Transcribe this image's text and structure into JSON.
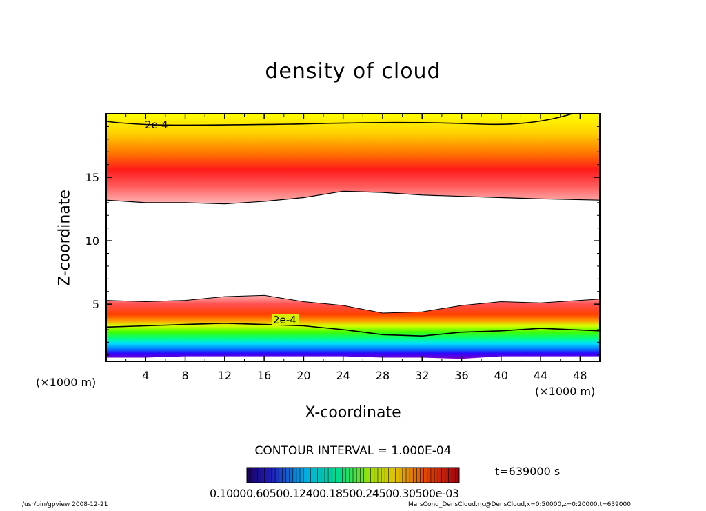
{
  "chart_data": {
    "type": "heatmap",
    "title": "density of cloud",
    "xlabel": "X-coordinate",
    "ylabel": "Z-coordinate",
    "x_unit_label": "(×1000 m)",
    "x_ticks": [
      4,
      8,
      12,
      16,
      20,
      24,
      28,
      32,
      36,
      40,
      44,
      48
    ],
    "y_ticks": [
      5,
      10,
      15
    ],
    "xlim": [
      0,
      50
    ],
    "ylim": [
      0.5,
      20
    ],
    "contour_interval": "CONTOUR INTERVAL = 1.000E-04",
    "contour_label": "2e-4",
    "time_label": "t=639000 s",
    "colorbar_label": "0.10000.60500.12400.18500.24500.30500e-03",
    "colorbar_min": 0.0001,
    "colorbar_max": 0.0003,
    "upper_layer": {
      "x": [
        0,
        4,
        8,
        12,
        16,
        20,
        24,
        28,
        32,
        36,
        40,
        44,
        50
      ],
      "bottom": [
        13.2,
        13.0,
        13.0,
        12.9,
        13.1,
        13.4,
        13.9,
        13.8,
        13.6,
        13.5,
        13.4,
        13.3,
        13.2
      ],
      "peak": 15.5
    },
    "lower_layer": {
      "x": [
        0,
        4,
        8,
        12,
        16,
        20,
        24,
        28,
        32,
        36,
        40,
        44,
        50
      ],
      "top": [
        5.3,
        5.2,
        5.3,
        5.6,
        5.7,
        5.2,
        4.9,
        4.3,
        4.4,
        4.9,
        5.2,
        5.1,
        5.4
      ],
      "contour_2e4": [
        3.2,
        3.3,
        3.4,
        3.5,
        3.4,
        3.3,
        3.0,
        2.6,
        2.5,
        2.8,
        2.9,
        3.1,
        2.9
      ],
      "bottom": [
        0.8,
        0.8,
        0.9,
        0.9,
        0.9,
        0.9,
        0.9,
        0.8,
        0.8,
        0.7,
        0.9,
        0.9,
        0.9
      ]
    }
  },
  "footer": {
    "left": "/usr/bin/gpview   2008-12-21",
    "right": "MarsCond_DensCloud.nc@DensCloud,x=0:50000,z=0:20000,t=639000"
  },
  "colors": {
    "frame": "#000000",
    "background": "#ffffff"
  }
}
